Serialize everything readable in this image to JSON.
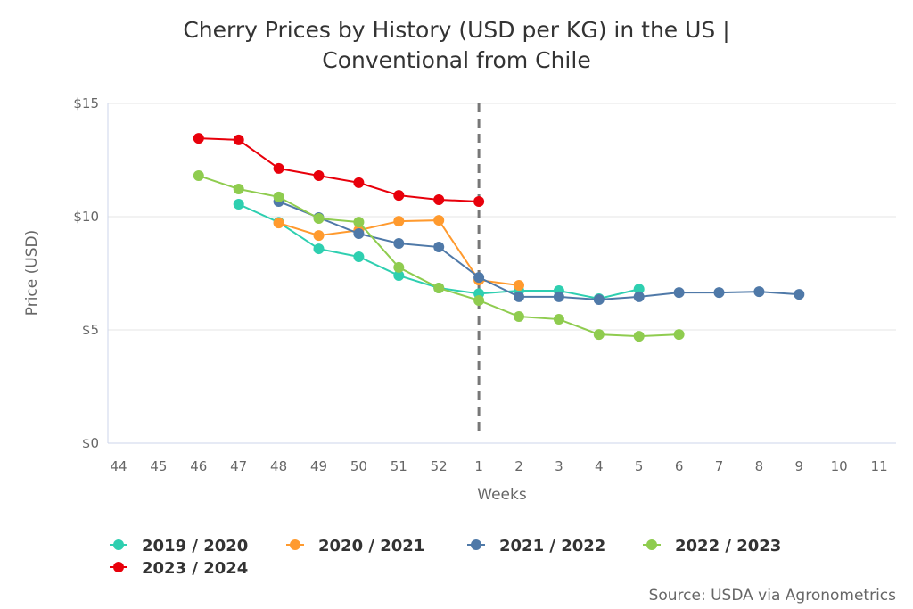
{
  "chart_data": {
    "type": "line",
    "title_lines": [
      "Cherry Prices by History (USD per KG) in the US |",
      "Conventional from Chile"
    ],
    "xlabel": "Weeks",
    "ylabel": "Price (USD)",
    "categories": [
      "44",
      "45",
      "46",
      "47",
      "48",
      "49",
      "50",
      "51",
      "52",
      "1",
      "2",
      "3",
      "4",
      "5",
      "6",
      "7",
      "8",
      "9",
      "10",
      "11"
    ],
    "ylim": [
      0,
      15
    ],
    "yticks": [
      0,
      5,
      10,
      15
    ],
    "ytick_labels": [
      "$0",
      "$5",
      "$10",
      "$15"
    ],
    "grid": "horizontal",
    "reference_line": {
      "category": "1",
      "style": "dashed",
      "color": "#777777"
    },
    "legend_position": "bottom-left",
    "series": [
      {
        "name": "2019 / 2020",
        "color": "#2ecfb0",
        "values": [
          null,
          null,
          null,
          10.55,
          9.75,
          8.58,
          8.23,
          7.4,
          6.85,
          6.6,
          6.73,
          6.73,
          6.38,
          6.8,
          null,
          null,
          null,
          null,
          null,
          null
        ]
      },
      {
        "name": "2020 / 2021",
        "color": "#ff9a2e",
        "values": [
          null,
          null,
          null,
          null,
          9.72,
          9.17,
          9.4,
          9.8,
          9.84,
          7.2,
          6.97,
          null,
          null,
          null,
          null,
          null,
          null,
          null,
          null,
          null
        ]
      },
      {
        "name": "2021 / 2022",
        "color": "#4f79a8",
        "values": [
          null,
          null,
          null,
          null,
          10.67,
          9.96,
          9.25,
          8.82,
          8.66,
          7.32,
          6.46,
          6.46,
          6.34,
          6.46,
          6.65,
          6.65,
          6.69,
          6.57,
          null,
          null
        ]
      },
      {
        "name": "2022 / 2023",
        "color": "#8fcc4f",
        "values": [
          null,
          null,
          11.81,
          11.22,
          10.87,
          9.92,
          9.76,
          7.76,
          6.85,
          6.3,
          5.59,
          5.47,
          4.8,
          4.72,
          4.8,
          null,
          null,
          null,
          null,
          null
        ]
      },
      {
        "name": "2023 / 2024",
        "color": "#e8000b",
        "values": [
          null,
          null,
          13.46,
          13.39,
          12.13,
          11.81,
          11.5,
          10.94,
          10.75,
          10.67,
          null,
          null,
          null,
          null,
          null,
          null,
          null,
          null,
          null,
          null
        ]
      }
    ],
    "source": "Source: USDA via Agronometrics"
  }
}
